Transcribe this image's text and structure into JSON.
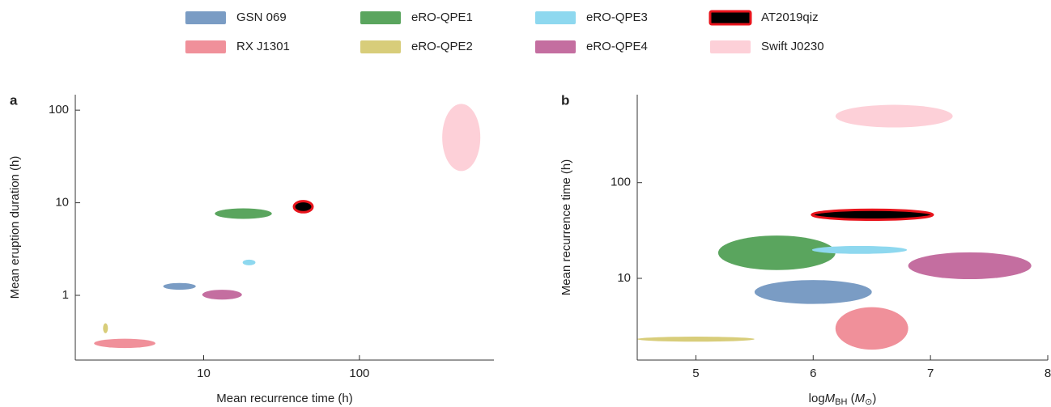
{
  "chart_data": [
    {
      "type": "ellipse",
      "panel_label": "a",
      "xlabel": [
        {
          "text": "Mean recurrence time (h)"
        }
      ],
      "ylabel": "Mean eruption duration (h)",
      "xscale": "log",
      "yscale": "log",
      "xlim": [
        1.5,
        730
      ],
      "ylim": [
        0.2,
        147
      ],
      "xticks": [
        10,
        100
      ],
      "yticks": [
        1,
        10,
        100
      ],
      "series": [
        {
          "name": "GSN 069",
          "color": "#7a9cc4",
          "x_range": [
            5.5,
            8.9
          ],
          "y_range": [
            1.15,
            1.36
          ]
        },
        {
          "name": "RX J1301",
          "color": "#f0909a",
          "x_range": [
            1.98,
            4.9
          ],
          "y_range": [
            0.27,
            0.34
          ]
        },
        {
          "name": "eRO-QPE1",
          "color": "#5aa55e",
          "x_range": [
            11.8,
            27.4
          ],
          "y_range": [
            6.7,
            8.7
          ]
        },
        {
          "name": "eRO-QPE2",
          "color": "#d8cd7a",
          "x_range": [
            2.26,
            2.43
          ],
          "y_range": [
            0.39,
            0.5
          ]
        },
        {
          "name": "eRO-QPE3",
          "color": "#8ed8ef",
          "x_range": [
            17.8,
            21.5
          ],
          "y_range": [
            2.11,
            2.43
          ]
        },
        {
          "name": "eRO-QPE4",
          "color": "#c46ea0",
          "x_range": [
            9.8,
            17.6
          ],
          "y_range": [
            0.9,
            1.15
          ]
        },
        {
          "name": "AT2019qiz",
          "color": "#000000",
          "edgecolor": "#e8141c",
          "x_range": [
            38,
            50
          ],
          "y_range": [
            7.9,
            10.4
          ]
        },
        {
          "name": "Swift J0230",
          "color": "#fdd0d8",
          "x_range": [
            340,
            597
          ],
          "y_range": [
            22,
            117
          ]
        }
      ]
    },
    {
      "type": "ellipse",
      "panel_label": "b",
      "xlabel": [
        {
          "text": "log"
        },
        {
          "text": "M",
          "style": "italic"
        },
        {
          "text": "BH",
          "style": "sub"
        },
        {
          "text": " ("
        },
        {
          "text": "M",
          "style": "italic"
        },
        {
          "text": "⊙",
          "style": "sub"
        },
        {
          "text": ")"
        }
      ],
      "ylabel": "Mean recurrence time (h)",
      "xscale": "linear",
      "yscale": "log",
      "xlim": [
        4.5,
        8
      ],
      "ylim": [
        1.4,
        830
      ],
      "xticks": [
        5,
        6,
        7,
        8
      ],
      "yticks": [
        10,
        100
      ],
      "series": [
        {
          "color": "#7a9cc4",
          "x_range": [
            5.5,
            6.5
          ],
          "y_range": [
            5.4,
            9.6
          ]
        },
        {
          "color": "#f0909a",
          "x_range": [
            6.19,
            6.81
          ],
          "y_range": [
            1.8,
            5.0
          ]
        },
        {
          "color": "#5aa55e",
          "x_range": [
            5.19,
            6.19
          ],
          "y_range": [
            12.2,
            28
          ]
        },
        {
          "color": "#d8cd7a",
          "x_range": [
            4.5,
            5.5
          ],
          "y_range": [
            2.18,
            2.46
          ]
        },
        {
          "color": "#8ed8ef",
          "x_range": [
            5.99,
            6.8
          ],
          "y_range": [
            18,
            21.8
          ]
        },
        {
          "color": "#c46ea0",
          "x_range": [
            6.81,
            7.86
          ],
          "y_range": [
            9.8,
            18.7
          ]
        },
        {
          "color": "#000000",
          "edgecolor": "#e8141c",
          "x_range": [
            5.99,
            7.02
          ],
          "y_range": [
            41,
            52
          ]
        },
        {
          "color": "#fdd0d8",
          "x_range": [
            6.19,
            7.19
          ],
          "y_range": [
            377,
            650
          ]
        }
      ]
    }
  ]
}
